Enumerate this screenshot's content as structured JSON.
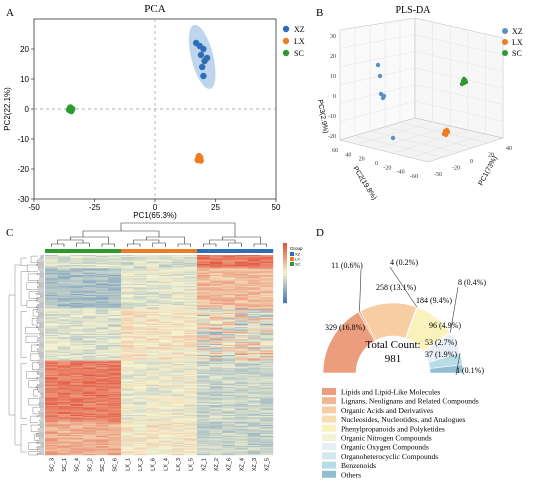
{
  "panels": {
    "A": "A",
    "B": "B",
    "C": "C",
    "D": "D"
  },
  "colors": {
    "XZ": "#2c6fb7",
    "LX": "#ee7d22",
    "SC": "#2e9a2e",
    "ellipse": "#aac7e8"
  },
  "chart_data": [
    {
      "type": "scatter",
      "title": "PCA",
      "xlabel": "PC1(65.3%)",
      "ylabel": "PC2(22.1%)",
      "xlim": [
        -50,
        50
      ],
      "ylim": [
        -30,
        30
      ],
      "xticks": [
        "-50",
        "-25",
        "0",
        "25",
        "50"
      ],
      "yticks": [
        "-30",
        "-20",
        "-10",
        "0",
        "10",
        "20"
      ],
      "legend": [
        "XZ",
        "LX",
        "SC"
      ],
      "legend_position": "right",
      "series": [
        {
          "name": "XZ",
          "points": [
            [
              17,
              22
            ],
            [
              18.5,
              21
            ],
            [
              20,
              20
            ],
            [
              19,
              18
            ],
            [
              21.5,
              17
            ],
            [
              20.5,
              16
            ],
            [
              19.5,
              14
            ],
            [
              20,
              11
            ]
          ]
        },
        {
          "name": "LX",
          "points": [
            [
              18,
              -16
            ],
            [
              18.6,
              -16.6
            ],
            [
              17.6,
              -17
            ],
            [
              18.9,
              -17.2
            ],
            [
              18.2,
              -15.7
            ],
            [
              18.7,
              -16.2
            ]
          ]
        },
        {
          "name": "SC",
          "points": [
            [
              -35,
              0.5
            ],
            [
              -34.2,
              0
            ],
            [
              -35.5,
              -0.3
            ],
            [
              -34.6,
              -0.7
            ],
            [
              -35.1,
              0.2
            ],
            [
              -34.4,
              -0.3
            ]
          ]
        }
      ]
    },
    {
      "type": "scatter",
      "title": "PLS-DA",
      "projection": "3d",
      "axis_labels": [
        "PC1(73%)",
        "PC2(19.8%)",
        "PC3(2.9%)"
      ],
      "xticks": [
        "-50",
        "-20",
        "0",
        "20",
        "40"
      ],
      "yticks": [
        "-60",
        "-40",
        "-20",
        "0",
        "20",
        "40",
        "60"
      ],
      "zticks": [
        "-20",
        "-10",
        "0",
        "10",
        "20",
        "30"
      ],
      "legend": [
        "XZ",
        "LX",
        "SC"
      ],
      "legend_position": "right"
    },
    {
      "type": "heatmap",
      "group_label": "Group",
      "columns": [
        "SC_3",
        "SC_1",
        "SC_4",
        "SC_2",
        "SC_5",
        "SC_6",
        "LX_1",
        "LX_2",
        "LX_6",
        "LX_4",
        "LX_3",
        "LX_5",
        "XZ_1",
        "XZ_2",
        "XZ_6",
        "XZ_4",
        "XZ_3",
        "XZ_5"
      ],
      "groups": [
        "SC",
        "SC",
        "SC",
        "SC",
        "SC",
        "SC",
        "LX",
        "LX",
        "LX",
        "LX",
        "LX",
        "LX",
        "XZ",
        "XZ",
        "XZ",
        "XZ",
        "XZ",
        "XZ"
      ],
      "legend_groups": [
        "XZ",
        "LX",
        "SC"
      ],
      "color_scale": {
        "min": -2,
        "max": 2,
        "low": "#4a7db8",
        "mid": "#f6f3cf",
        "high": "#e3543d"
      }
    },
    {
      "type": "pie",
      "center_text": [
        "Total Count:",
        "981"
      ],
      "slices": [
        {
          "label": "Lipids and Lipid-Like Molecules",
          "value": 329,
          "text": "329 (16.8%)",
          "color": "#eb9d7d"
        },
        {
          "label": "Lignans, Neolignans and Related Compounds",
          "value": 11,
          "text": "11 (0.6%)",
          "color": "#f2b690"
        },
        {
          "label": "Organic Acids and Derivatives",
          "value": 258,
          "text": "258 (13.1%)",
          "color": "#f7cda3"
        },
        {
          "label": "Nucleosides, Nucleotides, and Analogues",
          "value": 4,
          "text": "4 (0.2%)",
          "color": "#f9ddb0"
        },
        {
          "label": "Phenylpropanoids and Polyketides",
          "value": 184,
          "text": "184 (9.4%)",
          "color": "#faf2bc"
        },
        {
          "label": "Organic Nitrogen Compounds",
          "value": 8,
          "text": "8 (0.4%)",
          "color": "#f2f3d4"
        },
        {
          "label": "Organic Oxygen Compounds",
          "value": 96,
          "text": "96 (4.9%)",
          "color": "#e7eef5"
        },
        {
          "label": "Organoheterocyclic Compounds",
          "value": 1,
          "text": "1 (0.1%)",
          "color": "#d5e7ef"
        },
        {
          "label": "Benzenoids",
          "value": 53,
          "text": "53 (2.7%)",
          "color": "#b6dde6"
        },
        {
          "label": "Others",
          "value": 37,
          "text": "37 (1.9%)",
          "color": "#8fbfd0"
        }
      ]
    }
  ]
}
